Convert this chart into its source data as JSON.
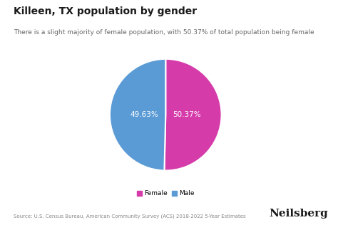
{
  "title": "Killeen, TX population by gender",
  "subtitle": "There is a slight majority of female population, with 50.37% of total population being female",
  "slices": [
    50.37,
    49.63
  ],
  "labels": [
    "Female",
    "Male"
  ],
  "colors": [
    "#d63baa",
    "#5b9bd5"
  ],
  "autopct_labels": [
    "50.37%",
    "49.63%"
  ],
  "legend_labels": [
    "Female",
    "Male"
  ],
  "source_text": "Source: U.S. Census Bureau, American Community Survey (ACS) 2018-2022 5-Year Estimates",
  "brand": "Neilsberg",
  "background_color": "#ffffff",
  "text_color": "#1a1a1a",
  "subtitle_color": "#666666",
  "label_color": "#ffffff",
  "source_color": "#888888",
  "startangle": 90
}
